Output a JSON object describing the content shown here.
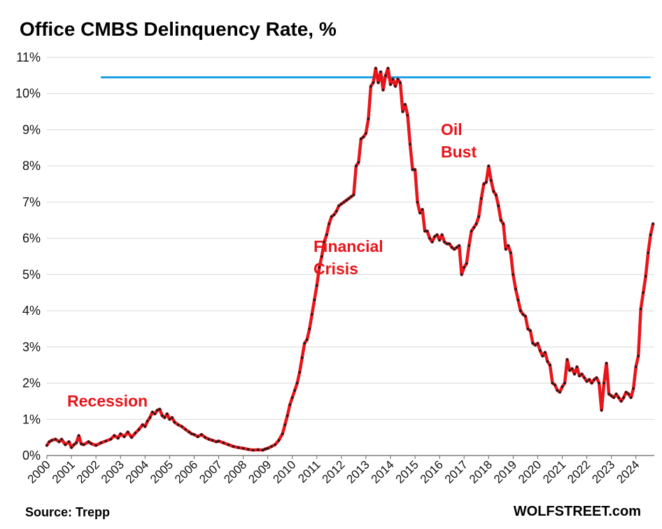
{
  "title": "Office CMBS Delinquency Rate, %",
  "source": "Source: Trepp",
  "brand": "WOLFSTREET.com",
  "annotations": [
    {
      "id": "recession",
      "lines": [
        "Recession"
      ]
    },
    {
      "id": "financial",
      "lines": [
        "Financial",
        "Crisis"
      ]
    },
    {
      "id": "oil",
      "lines": [
        "Oil",
        "Bust"
      ]
    }
  ],
  "colors": {
    "series_line": "#e8151b",
    "series_marker": "#1a1a1a",
    "reference_line": "#1ea0e6",
    "annotation": "#e8151b",
    "grid": "#d9d9d9"
  },
  "chart_data": {
    "type": "line",
    "title": "Office CMBS Delinquency Rate, %",
    "xlabel": "",
    "ylabel": "",
    "ylim": [
      0,
      11
    ],
    "y_ticks": [
      "0%",
      "1%",
      "2%",
      "3%",
      "4%",
      "5%",
      "6%",
      "7%",
      "8%",
      "9%",
      "10%",
      "11%"
    ],
    "x_ticks": [
      "2000",
      "2001",
      "2002",
      "2003",
      "2004",
      "2005",
      "2006",
      "2007",
      "2008",
      "2009",
      "2010",
      "2011",
      "2012",
      "2013",
      "2014",
      "2015",
      "2016",
      "2017",
      "2018",
      "2019",
      "2020",
      "2021",
      "2022",
      "2023",
      "2024"
    ],
    "xlim": [
      2000.0,
      2024.75
    ],
    "grid": "horizontal",
    "legend": "none",
    "reference_line": {
      "y": 10.45,
      "x_start": 2002.2,
      "x_end": 2024.6
    },
    "series": [
      {
        "points": [
          [
            2000.0,
            0.28
          ],
          [
            2000.1,
            0.38
          ],
          [
            2000.2,
            0.42
          ],
          [
            2000.35,
            0.45
          ],
          [
            2000.5,
            0.38
          ],
          [
            2000.6,
            0.45
          ],
          [
            2000.75,
            0.3
          ],
          [
            2000.9,
            0.38
          ],
          [
            2001.0,
            0.22
          ],
          [
            2001.1,
            0.3
          ],
          [
            2001.2,
            0.35
          ],
          [
            2001.3,
            0.55
          ],
          [
            2001.4,
            0.32
          ],
          [
            2001.5,
            0.3
          ],
          [
            2001.7,
            0.38
          ],
          [
            2001.8,
            0.33
          ],
          [
            2002.0,
            0.28
          ],
          [
            2002.2,
            0.35
          ],
          [
            2002.4,
            0.4
          ],
          [
            2002.6,
            0.45
          ],
          [
            2002.75,
            0.55
          ],
          [
            2002.9,
            0.48
          ],
          [
            2003.0,
            0.6
          ],
          [
            2003.15,
            0.52
          ],
          [
            2003.3,
            0.65
          ],
          [
            2003.45,
            0.5
          ],
          [
            2003.6,
            0.62
          ],
          [
            2003.75,
            0.72
          ],
          [
            2003.9,
            0.85
          ],
          [
            2004.0,
            0.8
          ],
          [
            2004.1,
            0.95
          ],
          [
            2004.2,
            1.05
          ],
          [
            2004.3,
            1.2
          ],
          [
            2004.4,
            1.15
          ],
          [
            2004.5,
            1.25
          ],
          [
            2004.6,
            1.28
          ],
          [
            2004.7,
            1.1
          ],
          [
            2004.8,
            1.05
          ],
          [
            2004.9,
            1.15
          ],
          [
            2005.0,
            1.0
          ],
          [
            2005.1,
            1.05
          ],
          [
            2005.2,
            0.92
          ],
          [
            2005.35,
            0.85
          ],
          [
            2005.5,
            0.8
          ],
          [
            2005.65,
            0.72
          ],
          [
            2005.8,
            0.65
          ],
          [
            2005.9,
            0.6
          ],
          [
            2006.0,
            0.58
          ],
          [
            2006.15,
            0.52
          ],
          [
            2006.3,
            0.58
          ],
          [
            2006.45,
            0.5
          ],
          [
            2006.6,
            0.45
          ],
          [
            2006.75,
            0.42
          ],
          [
            2006.9,
            0.38
          ],
          [
            2007.0,
            0.4
          ],
          [
            2007.2,
            0.35
          ],
          [
            2007.4,
            0.3
          ],
          [
            2007.6,
            0.25
          ],
          [
            2007.8,
            0.22
          ],
          [
            2008.0,
            0.2
          ],
          [
            2008.2,
            0.17
          ],
          [
            2008.4,
            0.15
          ],
          [
            2008.6,
            0.16
          ],
          [
            2008.8,
            0.15
          ],
          [
            2008.9,
            0.18
          ],
          [
            2009.0,
            0.2
          ],
          [
            2009.15,
            0.25
          ],
          [
            2009.3,
            0.3
          ],
          [
            2009.45,
            0.42
          ],
          [
            2009.6,
            0.6
          ],
          [
            2009.7,
            0.85
          ],
          [
            2009.8,
            1.1
          ],
          [
            2009.9,
            1.4
          ],
          [
            2010.0,
            1.6
          ],
          [
            2010.1,
            1.8
          ],
          [
            2010.2,
            2.0
          ],
          [
            2010.3,
            2.3
          ],
          [
            2010.4,
            2.7
          ],
          [
            2010.5,
            3.1
          ],
          [
            2010.6,
            3.2
          ],
          [
            2010.7,
            3.5
          ],
          [
            2010.8,
            3.9
          ],
          [
            2010.9,
            4.3
          ],
          [
            2011.0,
            4.7
          ],
          [
            2011.1,
            5.2
          ],
          [
            2011.2,
            5.5
          ],
          [
            2011.3,
            5.9
          ],
          [
            2011.4,
            6.1
          ],
          [
            2011.5,
            6.4
          ],
          [
            2011.6,
            6.6
          ],
          [
            2011.7,
            6.65
          ],
          [
            2011.8,
            6.75
          ],
          [
            2011.9,
            6.9
          ],
          [
            2012.0,
            6.95
          ],
          [
            2012.1,
            7.0
          ],
          [
            2012.2,
            7.05
          ],
          [
            2012.3,
            7.1
          ],
          [
            2012.4,
            7.15
          ],
          [
            2012.5,
            7.2
          ],
          [
            2012.6,
            8.0
          ],
          [
            2012.7,
            8.1
          ],
          [
            2012.8,
            8.75
          ],
          [
            2012.9,
            8.8
          ],
          [
            2013.0,
            8.9
          ],
          [
            2013.1,
            9.3
          ],
          [
            2013.2,
            10.2
          ],
          [
            2013.3,
            10.3
          ],
          [
            2013.4,
            10.7
          ],
          [
            2013.5,
            10.3
          ],
          [
            2013.6,
            10.6
          ],
          [
            2013.7,
            10.1
          ],
          [
            2013.8,
            10.5
          ],
          [
            2013.9,
            10.7
          ],
          [
            2014.0,
            10.25
          ],
          [
            2014.1,
            10.4
          ],
          [
            2014.2,
            10.2
          ],
          [
            2014.3,
            10.4
          ],
          [
            2014.4,
            10.3
          ],
          [
            2014.5,
            9.5
          ],
          [
            2014.6,
            9.7
          ],
          [
            2014.7,
            9.4
          ],
          [
            2014.8,
            8.6
          ],
          [
            2014.9,
            7.9
          ],
          [
            2015.0,
            7.9
          ],
          [
            2015.1,
            7.0
          ],
          [
            2015.2,
            6.7
          ],
          [
            2015.3,
            6.8
          ],
          [
            2015.4,
            6.2
          ],
          [
            2015.5,
            6.2
          ],
          [
            2015.6,
            6.0
          ],
          [
            2015.7,
            5.9
          ],
          [
            2015.8,
            6.05
          ],
          [
            2015.9,
            6.1
          ],
          [
            2016.0,
            5.95
          ],
          [
            2016.1,
            6.1
          ],
          [
            2016.2,
            5.9
          ],
          [
            2016.3,
            5.85
          ],
          [
            2016.4,
            5.85
          ],
          [
            2016.5,
            5.75
          ],
          [
            2016.6,
            5.7
          ],
          [
            2016.7,
            5.75
          ],
          [
            2016.8,
            5.8
          ],
          [
            2016.9,
            5.0
          ],
          [
            2017.0,
            5.2
          ],
          [
            2017.1,
            5.3
          ],
          [
            2017.2,
            5.8
          ],
          [
            2017.3,
            6.2
          ],
          [
            2017.4,
            6.3
          ],
          [
            2017.5,
            6.4
          ],
          [
            2017.6,
            6.6
          ],
          [
            2017.7,
            7.1
          ],
          [
            2017.8,
            7.5
          ],
          [
            2017.9,
            7.55
          ],
          [
            2018.0,
            8.0
          ],
          [
            2018.1,
            7.6
          ],
          [
            2018.2,
            7.3
          ],
          [
            2018.3,
            7.2
          ],
          [
            2018.4,
            6.9
          ],
          [
            2018.5,
            6.5
          ],
          [
            2018.6,
            6.4
          ],
          [
            2018.7,
            5.7
          ],
          [
            2018.8,
            5.8
          ],
          [
            2018.9,
            5.6
          ],
          [
            2019.0,
            5.0
          ],
          [
            2019.1,
            4.6
          ],
          [
            2019.2,
            4.3
          ],
          [
            2019.3,
            4.0
          ],
          [
            2019.4,
            3.9
          ],
          [
            2019.5,
            3.85
          ],
          [
            2019.6,
            3.5
          ],
          [
            2019.7,
            3.45
          ],
          [
            2019.8,
            3.1
          ],
          [
            2019.9,
            3.05
          ],
          [
            2020.0,
            3.1
          ],
          [
            2020.1,
            2.9
          ],
          [
            2020.2,
            2.75
          ],
          [
            2020.3,
            2.85
          ],
          [
            2020.4,
            2.6
          ],
          [
            2020.5,
            2.5
          ],
          [
            2020.6,
            2.0
          ],
          [
            2020.7,
            1.95
          ],
          [
            2020.8,
            1.8
          ],
          [
            2020.9,
            1.75
          ],
          [
            2021.0,
            1.9
          ],
          [
            2021.1,
            2.0
          ],
          [
            2021.2,
            2.65
          ],
          [
            2021.3,
            2.35
          ],
          [
            2021.4,
            2.4
          ],
          [
            2021.5,
            2.25
          ],
          [
            2021.6,
            2.45
          ],
          [
            2021.7,
            2.2
          ],
          [
            2021.8,
            2.25
          ],
          [
            2021.9,
            2.15
          ],
          [
            2022.0,
            2.05
          ],
          [
            2022.1,
            2.1
          ],
          [
            2022.2,
            2.0
          ],
          [
            2022.3,
            2.1
          ],
          [
            2022.4,
            2.15
          ],
          [
            2022.5,
            2.0
          ],
          [
            2022.6,
            1.25
          ],
          [
            2022.7,
            2.0
          ],
          [
            2022.8,
            2.55
          ],
          [
            2022.9,
            1.7
          ],
          [
            2023.0,
            1.65
          ],
          [
            2023.1,
            1.6
          ],
          [
            2023.2,
            1.7
          ],
          [
            2023.3,
            1.6
          ],
          [
            2023.4,
            1.5
          ],
          [
            2023.5,
            1.6
          ],
          [
            2023.6,
            1.75
          ],
          [
            2023.7,
            1.7
          ],
          [
            2023.8,
            1.6
          ],
          [
            2023.9,
            1.85
          ],
          [
            2024.0,
            2.45
          ],
          [
            2024.1,
            2.75
          ],
          [
            2024.2,
            4.05
          ],
          [
            2024.3,
            4.5
          ],
          [
            2024.4,
            4.95
          ],
          [
            2024.5,
            5.6
          ],
          [
            2024.6,
            6.1
          ],
          [
            2024.7,
            6.4
          ]
        ]
      }
    ]
  }
}
